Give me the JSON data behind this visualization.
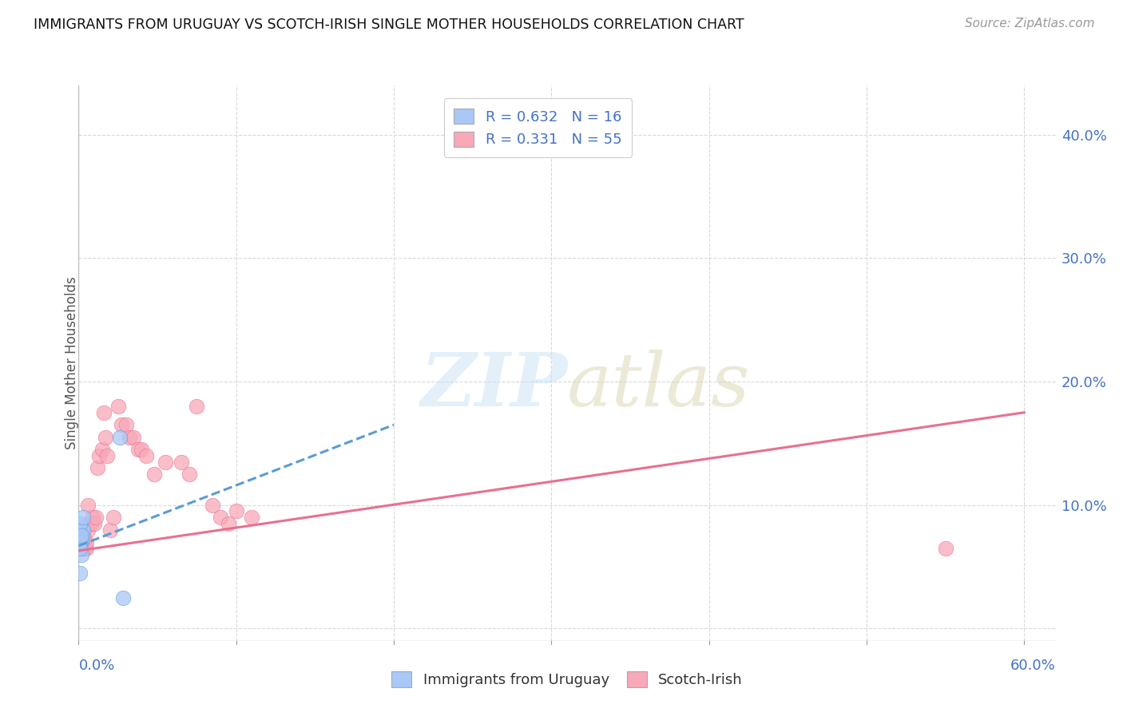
{
  "title": "IMMIGRANTS FROM URUGUAY VS SCOTCH-IRISH SINGLE MOTHER HOUSEHOLDS CORRELATION CHART",
  "source": "Source: ZipAtlas.com",
  "ylabel": "Single Mother Households",
  "right_ytick_vals": [
    0.0,
    0.1,
    0.2,
    0.3,
    0.4
  ],
  "right_ytick_labels": [
    "",
    "10.0%",
    "20.0%",
    "30.0%",
    "40.0%"
  ],
  "color_uruguay": "#a8c8f8",
  "color_scotch": "#f8a8b8",
  "color_blue_text": "#4472c4",
  "color_line_uruguay": "#5b9bd5",
  "color_line_scotch": "#e87090",
  "background_color": "#ffffff",
  "grid_color": "#d8d8d8",
  "uruguay_x": [
    0.001,
    0.002,
    0.001,
    0.003,
    0.001,
    0.002,
    0.002,
    0.001,
    0.003,
    0.002,
    0.001,
    0.001,
    0.002,
    0.001,
    0.026,
    0.028
  ],
  "uruguay_y": [
    0.075,
    0.082,
    0.078,
    0.08,
    0.065,
    0.07,
    0.06,
    0.085,
    0.09,
    0.072,
    0.07,
    0.065,
    0.075,
    0.045,
    0.155,
    0.025
  ],
  "scotch_x": [
    0.001,
    0.001,
    0.001,
    0.002,
    0.002,
    0.002,
    0.002,
    0.002,
    0.002,
    0.002,
    0.003,
    0.003,
    0.003,
    0.003,
    0.004,
    0.004,
    0.004,
    0.004,
    0.005,
    0.005,
    0.006,
    0.006,
    0.007,
    0.007,
    0.008,
    0.009,
    0.01,
    0.011,
    0.012,
    0.013,
    0.015,
    0.016,
    0.017,
    0.018,
    0.02,
    0.022,
    0.025,
    0.027,
    0.03,
    0.032,
    0.035,
    0.038,
    0.04,
    0.043,
    0.048,
    0.055,
    0.065,
    0.07,
    0.075,
    0.085,
    0.09,
    0.095,
    0.1,
    0.11,
    0.55
  ],
  "scotch_y": [
    0.07,
    0.075,
    0.065,
    0.08,
    0.07,
    0.068,
    0.065,
    0.065,
    0.065,
    0.065,
    0.07,
    0.07,
    0.075,
    0.075,
    0.065,
    0.065,
    0.07,
    0.07,
    0.065,
    0.07,
    0.1,
    0.08,
    0.085,
    0.085,
    0.085,
    0.09,
    0.085,
    0.09,
    0.13,
    0.14,
    0.145,
    0.175,
    0.155,
    0.14,
    0.08,
    0.09,
    0.18,
    0.165,
    0.165,
    0.155,
    0.155,
    0.145,
    0.145,
    0.14,
    0.125,
    0.135,
    0.135,
    0.125,
    0.18,
    0.1,
    0.09,
    0.085,
    0.095,
    0.09,
    0.065
  ],
  "xlim": [
    0.0,
    0.62
  ],
  "ylim": [
    -0.01,
    0.44
  ],
  "x_grid": [
    0.0,
    0.1,
    0.2,
    0.3,
    0.4,
    0.5,
    0.6
  ],
  "uruguay_trend_x": [
    0.0,
    0.2
  ],
  "uruguay_trend_y": [
    0.067,
    0.165
  ],
  "scotch_trend_x": [
    0.0,
    0.6
  ],
  "scotch_trend_y": [
    0.063,
    0.175
  ]
}
